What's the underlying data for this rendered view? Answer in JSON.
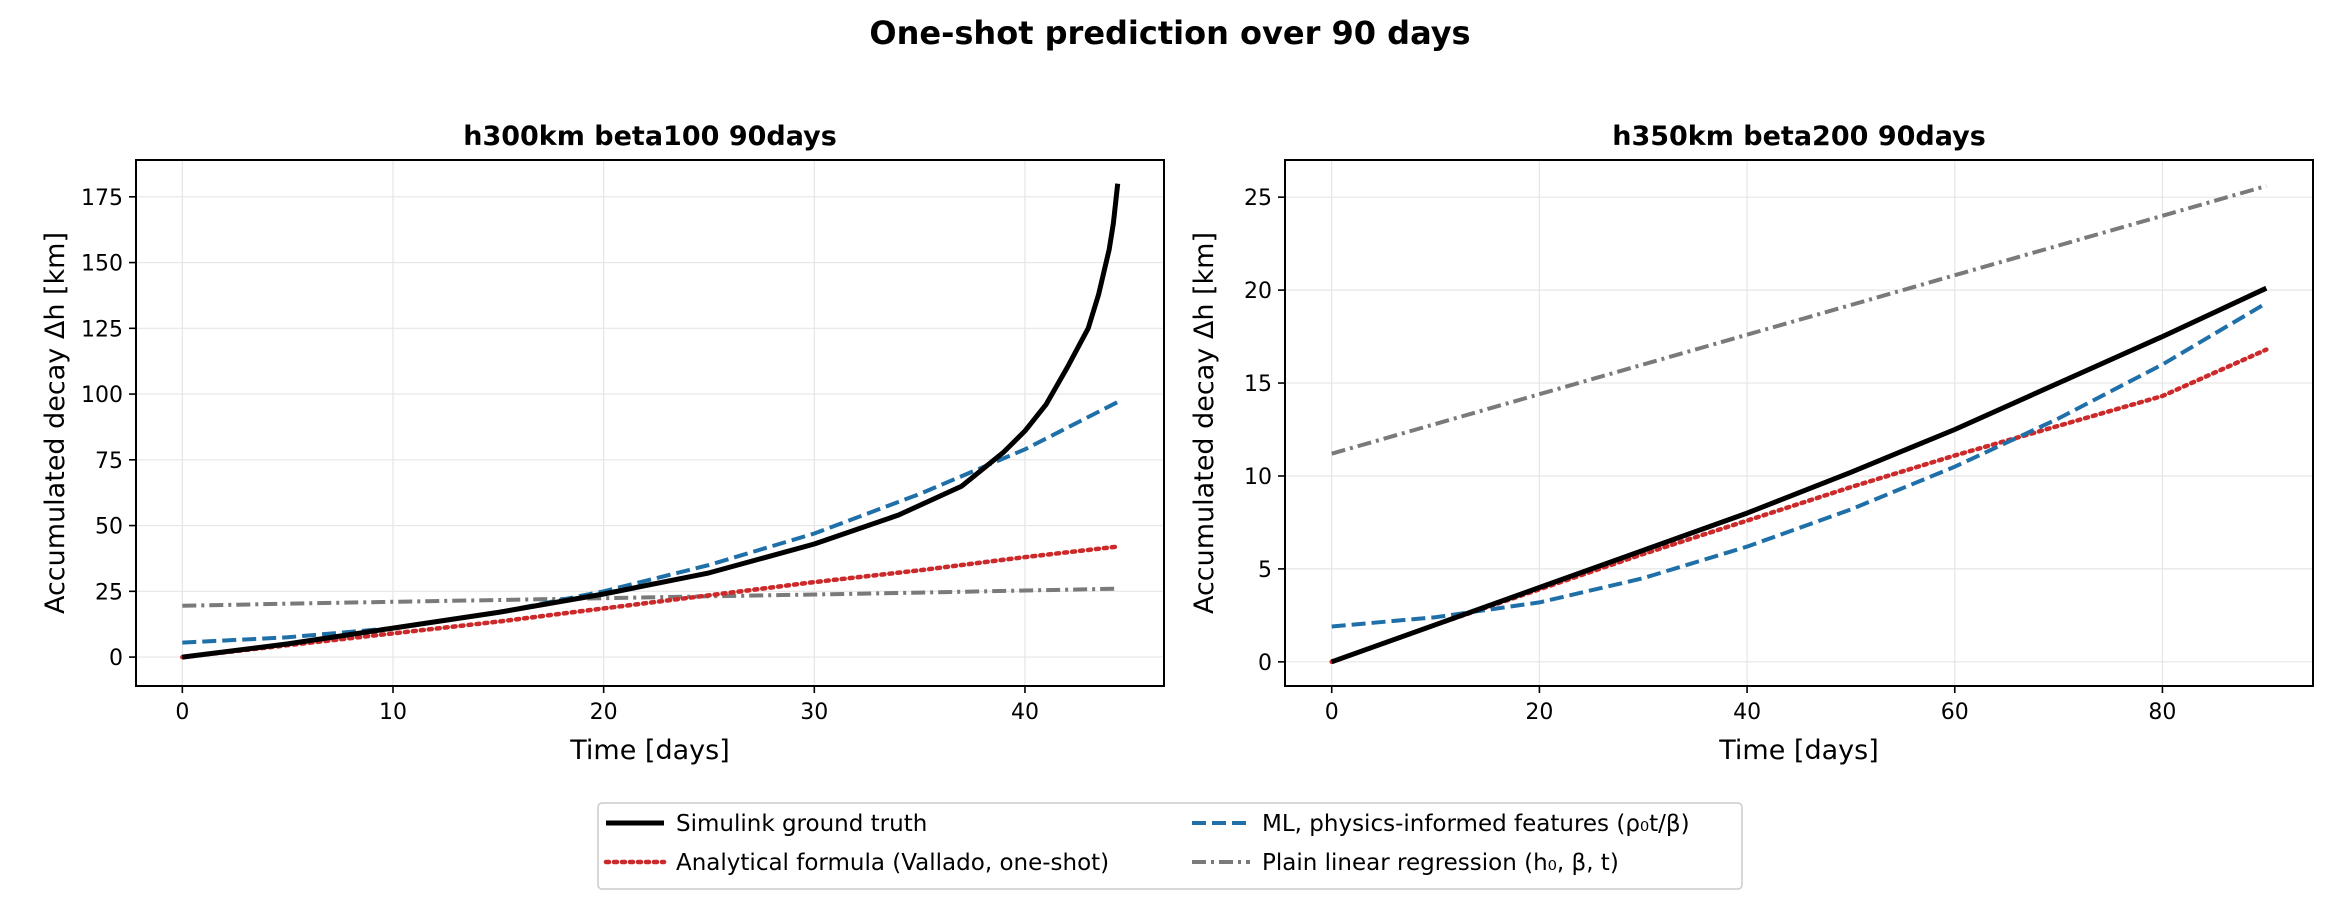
{
  "figure_title": "One-shot prediction over 90 days",
  "legend": {
    "items": [
      {
        "key": "truth",
        "label": "Simulink ground truth",
        "color": "#000000",
        "dash": "solid"
      },
      {
        "key": "ml",
        "label": "ML, physics-informed features (ρ₀t/β)",
        "color": "#1f6fa8",
        "dash": "dashed"
      },
      {
        "key": "analytic",
        "label": "Analytical formula (Vallado, one-shot)",
        "color": "#cc2a2a",
        "dash": "dotted"
      },
      {
        "key": "linreg",
        "label": "Plain linear regression (h₀, β, t)",
        "color": "#7a7a7a",
        "dash": "dashdot"
      }
    ],
    "placement": "bottom-center"
  },
  "chart_data": [
    {
      "type": "line",
      "title": "h300km beta100 90days",
      "xlabel": "Time [days]",
      "ylabel": "Accumulated decay Δh [km]",
      "xlim": [
        -2.2,
        46.6
      ],
      "ylim": [
        -11,
        189
      ],
      "xticks": [
        0,
        10,
        20,
        30,
        40
      ],
      "yticks": [
        0,
        25,
        50,
        75,
        100,
        125,
        150,
        175
      ],
      "grid": true,
      "series": [
        {
          "key": "truth",
          "x": [
            0,
            5,
            10,
            15,
            20,
            25,
            30,
            34,
            37,
            39,
            40,
            41,
            42,
            43,
            43.5,
            44,
            44.2,
            44.4
          ],
          "y": [
            0,
            5,
            11,
            17,
            24,
            32,
            43,
            54,
            65,
            78,
            86,
            96,
            110,
            125,
            138,
            155,
            165,
            180
          ]
        },
        {
          "key": "ml",
          "x": [
            0,
            5,
            10,
            15,
            20,
            25,
            30,
            35,
            40,
            44.4
          ],
          "y": [
            5.5,
            7.5,
            11,
            17,
            25,
            35,
            47,
            62,
            79,
            97
          ]
        },
        {
          "key": "analytic",
          "x": [
            0,
            5,
            10,
            15,
            20,
            25,
            30,
            35,
            40,
            44.4
          ],
          "y": [
            0,
            4.5,
            9,
            13.5,
            18.5,
            23.5,
            28.5,
            33,
            38,
            42
          ]
        },
        {
          "key": "linreg",
          "x": [
            0,
            5,
            10,
            15,
            20,
            25,
            30,
            35,
            40,
            44.4
          ],
          "y": [
            19.5,
            20.3,
            21,
            21.7,
            22.4,
            23.1,
            23.8,
            24.5,
            25.3,
            26
          ]
        }
      ]
    },
    {
      "type": "line",
      "title": "h350km beta200 90days",
      "xlabel": "Time [days]",
      "ylabel": "Accumulated decay Δh [km]",
      "xlim": [
        -4.5,
        94.5
      ],
      "ylim": [
        -1.3,
        27
      ],
      "xticks": [
        0,
        20,
        40,
        60,
        80
      ],
      "yticks": [
        0,
        5,
        10,
        15,
        20,
        25
      ],
      "grid": true,
      "series": [
        {
          "key": "truth",
          "x": [
            0,
            10,
            20,
            30,
            40,
            50,
            60,
            70,
            80,
            90
          ],
          "y": [
            0,
            2.0,
            4.0,
            6.0,
            8.0,
            10.2,
            12.5,
            15.0,
            17.5,
            20.1
          ]
        },
        {
          "key": "ml",
          "x": [
            0,
            10,
            20,
            30,
            40,
            50,
            60,
            70,
            80,
            90
          ],
          "y": [
            1.9,
            2.4,
            3.2,
            4.5,
            6.2,
            8.2,
            10.5,
            13.1,
            16.0,
            19.3
          ]
        },
        {
          "key": "analytic",
          "x": [
            0,
            10,
            20,
            30,
            40,
            50,
            60,
            70,
            80,
            90
          ],
          "y": [
            0,
            2.0,
            3.9,
            5.8,
            7.6,
            9.4,
            11.1,
            12.7,
            14.3,
            16.8
          ]
        },
        {
          "key": "linreg",
          "x": [
            0,
            10,
            20,
            30,
            40,
            50,
            60,
            70,
            80,
            90
          ],
          "y": [
            11.2,
            12.8,
            14.4,
            16.0,
            17.6,
            19.2,
            20.8,
            22.4,
            24.0,
            25.6
          ]
        }
      ]
    }
  ]
}
